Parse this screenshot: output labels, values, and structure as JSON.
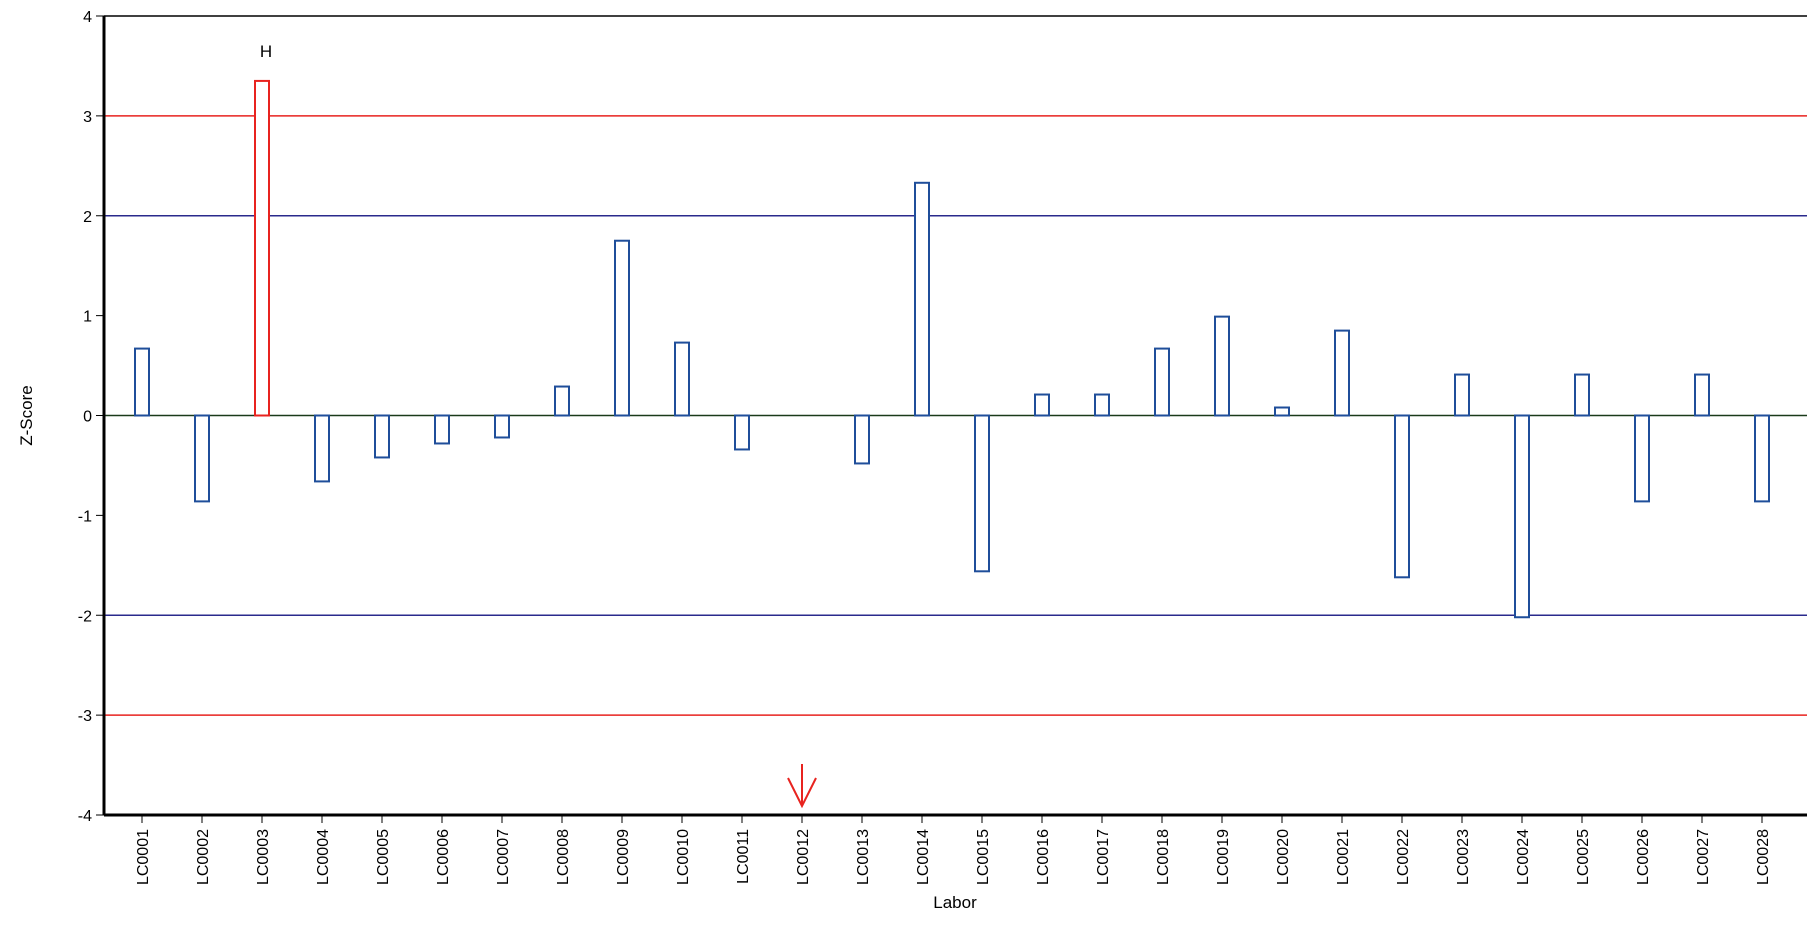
{
  "chart_data": {
    "type": "bar",
    "title": "",
    "xlabel": "Labor",
    "ylabel": "Z-Score",
    "ylim": [
      -4,
      4
    ],
    "yticks": [
      4,
      3,
      2,
      1,
      0,
      -1,
      -2,
      -3,
      -4
    ],
    "categories": [
      "LC0001",
      "LC0002",
      "LC0003",
      "LC0004",
      "LC0005",
      "LC0006",
      "LC0007",
      "LC0008",
      "LC0009",
      "LC0010",
      "LC0011",
      "LC0012",
      "LC0013",
      "LC0014",
      "LC0015",
      "LC0016",
      "LC0017",
      "LC0018",
      "LC0019",
      "LC0020",
      "LC0021",
      "LC0022",
      "LC0023",
      "LC0024",
      "LC0025",
      "LC0026",
      "LC0027",
      "LC0028"
    ],
    "values": [
      0.67,
      -0.86,
      3.35,
      -0.66,
      -0.42,
      -0.28,
      -0.22,
      0.29,
      1.75,
      0.73,
      -0.34,
      null,
      -0.48,
      2.33,
      -1.56,
      0.21,
      0.21,
      0.67,
      0.99,
      0.08,
      0.85,
      -1.62,
      0.41,
      -2.02,
      0.41,
      -0.86,
      0.41,
      -0.86
    ],
    "reference_lines": [
      {
        "value": 3,
        "color": "#e8231f"
      },
      {
        "value": -3,
        "color": "#e8231f"
      },
      {
        "value": 2,
        "color": "#2a2a8c"
      },
      {
        "value": -2,
        "color": "#2a2a8c"
      }
    ],
    "flags": [
      {
        "category": "LC0003",
        "label": "H"
      }
    ],
    "marker_category": "LC0012",
    "colors": {
      "bar": "#1f4e9a",
      "bar_outlier": "#e8231f",
      "marker": "#e8231f",
      "axis": "#000000",
      "zero_line": "#1a3a1a"
    },
    "grid": false
  }
}
